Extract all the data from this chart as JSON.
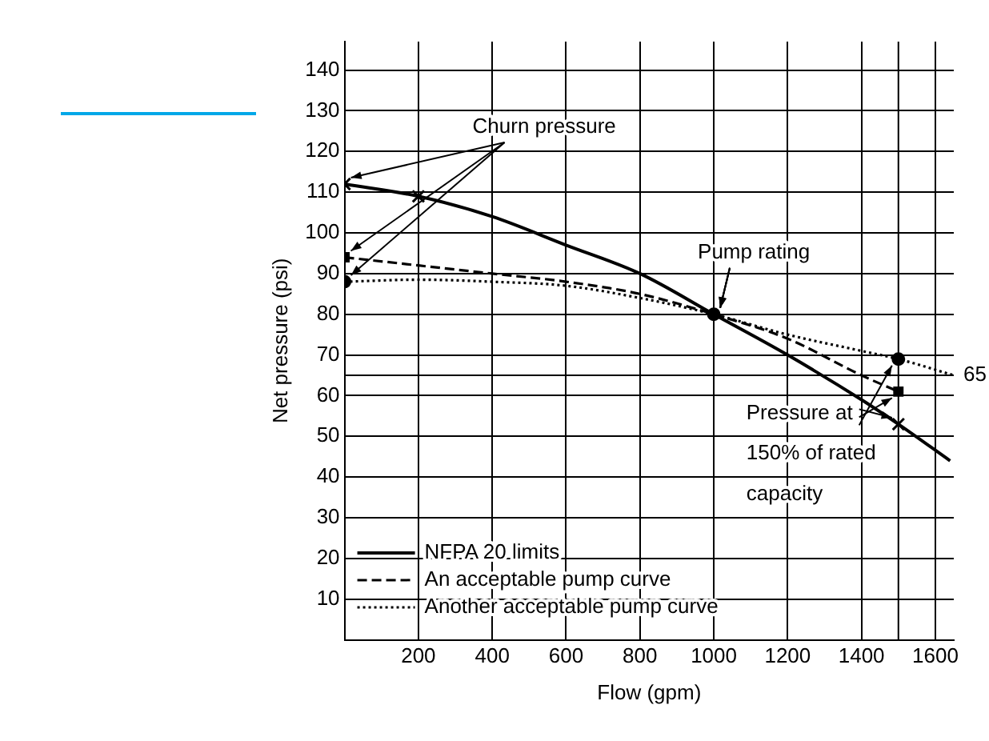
{
  "chart_data": {
    "type": "line",
    "xlabel": "Flow (gpm)",
    "ylabel": "Net pressure (psi)",
    "xlim": [
      0,
      1650
    ],
    "ylim": [
      0,
      147
    ],
    "xticks": [
      200,
      400,
      600,
      800,
      1000,
      1200,
      1400,
      1600
    ],
    "yticks": [
      10,
      20,
      30,
      40,
      50,
      60,
      70,
      80,
      90,
      100,
      110,
      120,
      130,
      140
    ],
    "grid": true,
    "legend": "bottom left",
    "marker": "none",
    "series": [
      {
        "name": "NFPA 20 limits",
        "color": "#000000",
        "line_style": "solid",
        "x": [
          0,
          200,
          400,
          600,
          800,
          1000,
          1200,
          1400,
          1500,
          1640
        ],
        "values": [
          112,
          109,
          104,
          97,
          90,
          80,
          70,
          59,
          53,
          44
        ]
      },
      {
        "name": "An acceptable pump curve",
        "color": "#000000",
        "line_style": "dashed",
        "x": [
          0,
          200,
          400,
          600,
          800,
          1000,
          1200,
          1400,
          1500
        ],
        "values": [
          94,
          92,
          90,
          88,
          85,
          80,
          74,
          65,
          61
        ]
      },
      {
        "name": "Another acceptable pump curve",
        "color": "#000000",
        "line_style": "dotted",
        "x": [
          0,
          200,
          400,
          600,
          800,
          1000,
          1200,
          1400,
          1500,
          1650
        ],
        "values": [
          88,
          88.5,
          88,
          87,
          84,
          80,
          75,
          71,
          69,
          65
        ]
      },
      {
        "type": "scatter",
        "marker": "cross",
        "color": "#000000",
        "x": [
          0,
          200,
          1500
        ],
        "values": [
          112,
          109,
          53
        ]
      },
      {
        "type": "scatter",
        "marker": "square",
        "color": "#000000",
        "x": [
          0,
          1500
        ],
        "values": [
          94,
          61
        ]
      },
      {
        "type": "scatter",
        "marker": "circle",
        "color": "#000000",
        "x": [
          0,
          1000,
          1500
        ],
        "values": [
          88,
          80,
          69
        ]
      }
    ],
    "ref_lines": [
      {
        "axis": "y",
        "value": 65,
        "label": "65"
      },
      {
        "axis": "x",
        "value": 1500
      }
    ],
    "annotations": [
      {
        "text": "Churn pressure",
        "x": 0,
        "y": 112
      },
      {
        "text": "Pump rating",
        "x": 1000,
        "y": 80
      },
      {
        "text": "Pressure at 150% of rated capacity",
        "x": 1500,
        "y": 61
      }
    ]
  }
}
